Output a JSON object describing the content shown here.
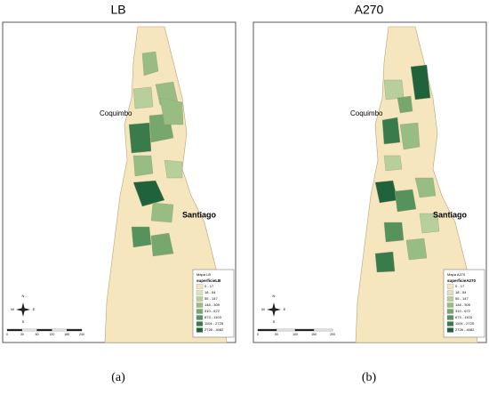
{
  "panels": [
    {
      "title": "LB",
      "labels": [
        "Coquimbo",
        "Santiago"
      ],
      "compass": [
        "N",
        "E",
        "S",
        "W"
      ],
      "legend": {
        "title": "Mapa LB",
        "field": "superficieLB",
        "items": [
          {
            "label": "0 - 17",
            "color": "#f6e6bd"
          },
          {
            "label": "18 - 54",
            "color": "#d9e4b9"
          },
          {
            "label": "55 - 147",
            "color": "#b7d09b"
          },
          {
            "label": "148 - 309",
            "color": "#97bd83"
          },
          {
            "label": "310 - 672",
            "color": "#76a86d"
          },
          {
            "label": "673 - 1103",
            "color": "#56925c"
          },
          {
            "label": "1104 - 2725",
            "color": "#3a7b4c"
          },
          {
            "label": "2726 - 4082",
            "color": "#20623b"
          }
        ]
      },
      "scale": [
        "0",
        "30",
        "60",
        "120",
        "180",
        "240"
      ],
      "caption": "(a)"
    },
    {
      "title": "A270",
      "labels": [
        "Coquimbo",
        "Santiago"
      ],
      "compass": [
        "N",
        "E",
        "S",
        "W"
      ],
      "legend": {
        "title": "Mapa A270",
        "field": "superficieA270",
        "items": [
          {
            "label": "0 - 17",
            "color": "#f6e6bd"
          },
          {
            "label": "18 - 54",
            "color": "#d9e4b9"
          },
          {
            "label": "55 - 147",
            "color": "#b7d09b"
          },
          {
            "label": "148 - 309",
            "color": "#97bd83"
          },
          {
            "label": "310 - 672",
            "color": "#76a86d"
          },
          {
            "label": "673 - 1103",
            "color": "#56925c"
          },
          {
            "label": "1104 - 2725",
            "color": "#3a7b4c"
          },
          {
            "label": "2726 - 4082",
            "color": "#20623b"
          }
        ]
      },
      "scale": [
        "0",
        "50",
        "100",
        "150",
        "200"
      ],
      "caption": "(b)"
    }
  ]
}
